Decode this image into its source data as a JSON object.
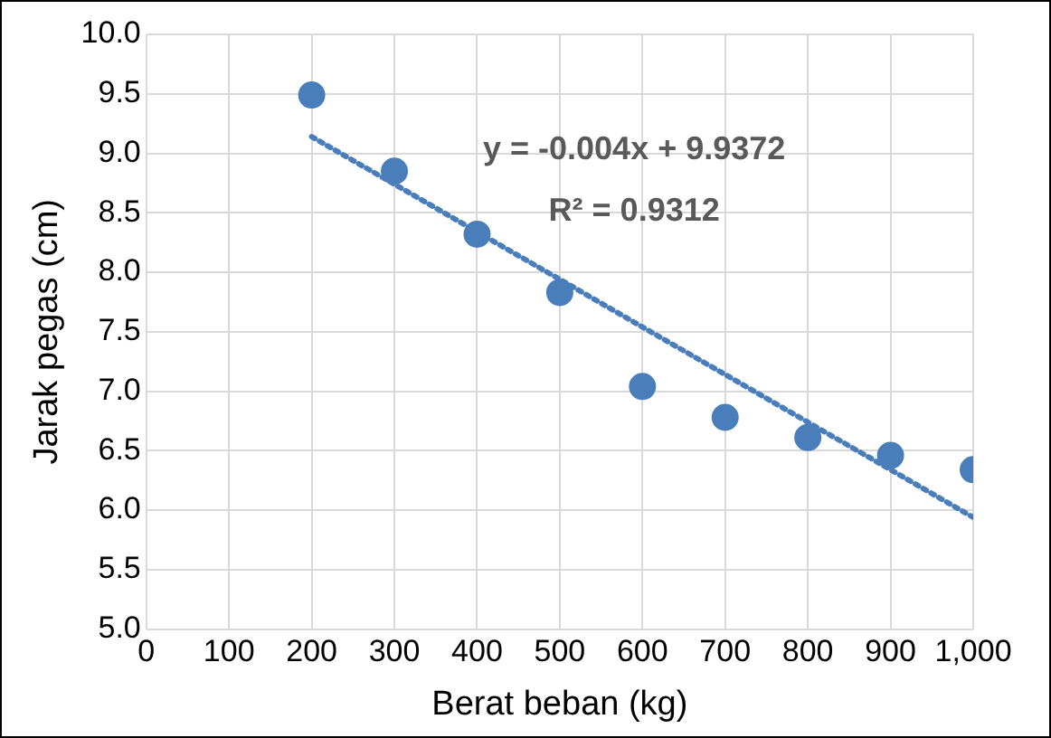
{
  "chart_data": {
    "type": "scatter",
    "xlabel": "Berat beban (kg)",
    "ylabel": "Jarak pegas (cm)",
    "series": [
      {
        "type": "scatter",
        "color": "#4a7ebb",
        "marker": "circle",
        "x": [
          200,
          300,
          400,
          500,
          600,
          700,
          800,
          900,
          1000
        ],
        "values": [
          9.49,
          8.85,
          8.32,
          7.83,
          7.04,
          6.78,
          6.61,
          6.46,
          6.34
        ]
      },
      {
        "type": "line",
        "color": "#4a7ebb",
        "marker": "none",
        "x": [
          200,
          1000
        ],
        "values": [
          9.14,
          5.94
        ],
        "line_style": "dotted"
      }
    ],
    "grid": true,
    "legend": false,
    "xlim": [
      0,
      1000
    ],
    "xticks": [
      0,
      100,
      200,
      300,
      400,
      500,
      600,
      700,
      800,
      900,
      {
        "value": 1000,
        "label": "1,000"
      }
    ],
    "ylim": [
      5,
      10
    ],
    "yticks": [
      {
        "value": 5,
        "label": "5.0"
      },
      5.5,
      {
        "value": 6,
        "label": "6.0"
      },
      6.5,
      {
        "value": 7,
        "label": "7.0"
      },
      7.5,
      {
        "value": 8,
        "label": "8.0"
      },
      8.5,
      {
        "value": 9,
        "label": "9.0"
      },
      9.5,
      {
        "value": 10,
        "label": "10.0"
      }
    ],
    "annotations": [
      "y = -0.004x + 9.9372",
      "R² = 0.9312"
    ]
  }
}
